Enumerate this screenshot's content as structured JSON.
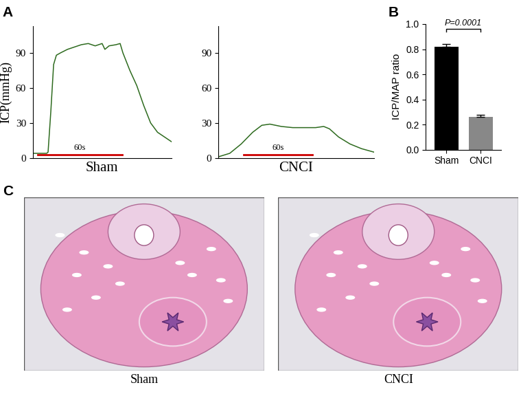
{
  "chart_data": [
    {
      "type": "line",
      "xlabel": "Sham",
      "ylabel": "ICP(mmHg)",
      "x": [
        0,
        5,
        10,
        11,
        13,
        15,
        17,
        20,
        25,
        30,
        35,
        40,
        45,
        50,
        52,
        55,
        60,
        63,
        65,
        70,
        75,
        80,
        85,
        90,
        95,
        100
      ],
      "values": [
        4,
        4,
        4,
        5,
        40,
        80,
        88,
        90,
        93,
        95,
        97,
        98,
        96,
        98,
        93,
        96,
        97,
        98,
        90,
        75,
        62,
        45,
        30,
        22,
        18,
        14
      ],
      "color": "#2e6b1f",
      "xlim": [
        0,
        100
      ],
      "ylim": [
        0,
        113
      ],
      "yticks": [
        0,
        30,
        60,
        90
      ],
      "tick_labels": "y",
      "annotations": [
        {
          "text": "A"
        },
        {
          "text": "60s",
          "x": [
            3.5,
            64.5
          ],
          "y": 3,
          "color": "#cc0000"
        }
      ]
    },
    {
      "type": "line",
      "xlabel": "CNCI",
      "x": [
        0,
        10,
        20,
        30,
        38,
        45,
        55,
        65,
        75,
        85,
        92,
        97,
        105,
        115,
        125,
        136
      ],
      "values": [
        1,
        4,
        12,
        22,
        28,
        29,
        27,
        26,
        26,
        26,
        27,
        25,
        18,
        12,
        8,
        5
      ],
      "color": "#2e6b1f",
      "xlim": [
        0,
        136
      ],
      "ylim": [
        0,
        113
      ],
      "yticks": [
        0,
        30,
        60,
        90
      ],
      "tick_labels": "y",
      "annotations": [
        {
          "text": "60s",
          "x": [
            22,
            82
          ],
          "y": 3,
          "color": "#cc0000"
        }
      ]
    },
    {
      "type": "bar",
      "ylabel": "ICP/MAP ratio",
      "categories": [
        "Sham",
        "CNCI"
      ],
      "values": [
        0.82,
        0.26
      ],
      "errors": [
        0.02,
        0.02
      ],
      "colors": [
        "#000000",
        "#888888"
      ],
      "ylim": [
        0,
        1.0
      ],
      "yticks": [
        {
          "value": 0,
          "label": "0.0"
        },
        {
          "value": 0.2,
          "label": "0.2"
        },
        {
          "value": 0.4,
          "label": "0.4"
        },
        {
          "value": 0.6,
          "label": "0.6"
        },
        {
          "value": 0.8,
          "label": "0.8"
        },
        {
          "value": 1.0,
          "label": "1.0"
        }
      ],
      "annotations": [
        {
          "text": "B"
        },
        {
          "text": "P=0.0001",
          "y": 0.96
        }
      ]
    },
    {
      "type": "image",
      "xlabel": "Sham",
      "annotations": [
        {
          "text": "C"
        }
      ]
    },
    {
      "type": "image",
      "xlabel": "CNCI"
    }
  ]
}
